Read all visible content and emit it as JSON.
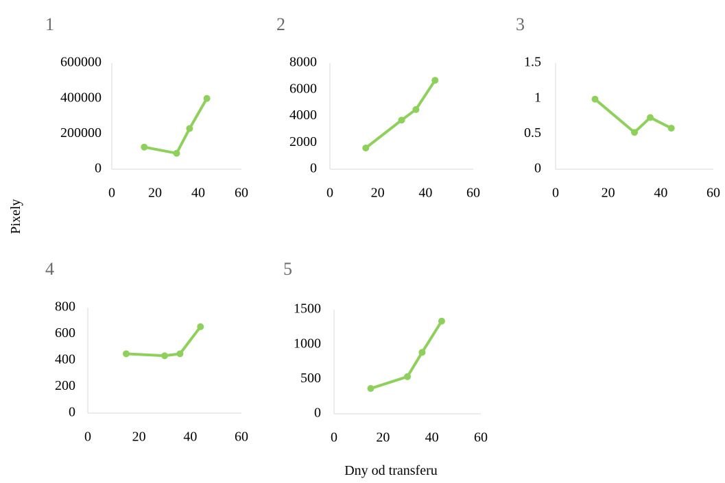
{
  "ylabel": "Pixely",
  "xlabel": "Dny od transferu",
  "line_color": "#8fd05c",
  "chart_data": [
    {
      "type": "line",
      "title": "1",
      "x": [
        15,
        30,
        36,
        44
      ],
      "values": [
        125000,
        90000,
        230000,
        400000
      ],
      "xlim": [
        0,
        60
      ],
      "ylim": [
        0,
        600000
      ],
      "xticks": [
        0,
        20,
        40,
        60
      ],
      "yticks": [
        0,
        200000,
        400000,
        600000
      ],
      "grid": false
    },
    {
      "type": "line",
      "title": "2",
      "x": [
        15,
        30,
        36,
        44
      ],
      "values": [
        1600,
        3700,
        4500,
        6700
      ],
      "xlim": [
        0,
        60
      ],
      "ylim": [
        0,
        8000
      ],
      "xticks": [
        0,
        20,
        40,
        60
      ],
      "yticks": [
        0,
        2000,
        4000,
        6000,
        8000
      ],
      "grid": false
    },
    {
      "type": "line",
      "title": "3",
      "x": [
        15,
        30,
        36,
        44
      ],
      "values": [
        0.99,
        0.52,
        0.73,
        0.58
      ],
      "xlim": [
        0,
        60
      ],
      "ylim": [
        0,
        1.5
      ],
      "xticks": [
        0,
        20,
        40,
        60
      ],
      "yticks": [
        0,
        0.5,
        1,
        1.5
      ],
      "grid": false
    },
    {
      "type": "line",
      "title": "4",
      "x": [
        15,
        30,
        36,
        44
      ],
      "values": [
        450,
        435,
        450,
        655
      ],
      "xlim": [
        0,
        60
      ],
      "ylim": [
        0,
        800
      ],
      "xticks": [
        0,
        20,
        40,
        60
      ],
      "yticks": [
        0,
        200,
        400,
        600,
        800
      ],
      "grid": false
    },
    {
      "type": "line",
      "title": "5",
      "x": [
        15,
        30,
        36,
        44
      ],
      "values": [
        365,
        535,
        885,
        1335
      ],
      "xlim": [
        0,
        60
      ],
      "ylim": [
        0,
        1500
      ],
      "xticks": [
        0,
        20,
        40,
        60
      ],
      "yticks": [
        0,
        500,
        1000,
        1500
      ],
      "grid": false
    }
  ]
}
